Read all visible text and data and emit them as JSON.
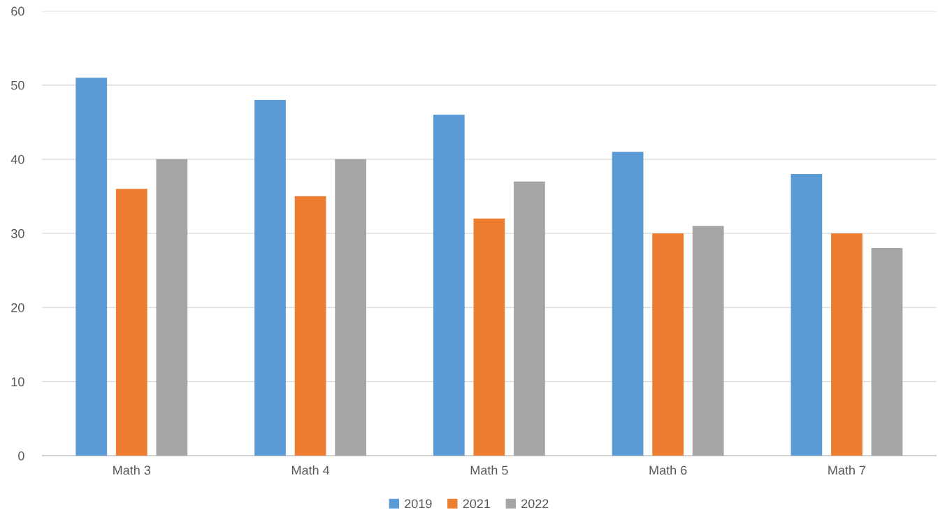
{
  "chart_data": {
    "type": "bar",
    "categories": [
      "Math 3",
      "Math 4",
      "Math 5",
      "Math 6",
      "Math 7"
    ],
    "series": [
      {
        "name": "2019",
        "color": "#5b9bd5",
        "values": [
          51,
          48,
          46,
          41,
          38
        ]
      },
      {
        "name": "2021",
        "color": "#ed7d31",
        "values": [
          36,
          35,
          32,
          30,
          30
        ]
      },
      {
        "name": "2022",
        "color": "#a5a5a5",
        "values": [
          40,
          40,
          37,
          31,
          28
        ]
      }
    ],
    "ylim": [
      0,
      60
    ],
    "yticks": [
      0,
      10,
      20,
      30,
      40,
      50,
      60
    ],
    "grid": "y",
    "legend": "bottom"
  }
}
